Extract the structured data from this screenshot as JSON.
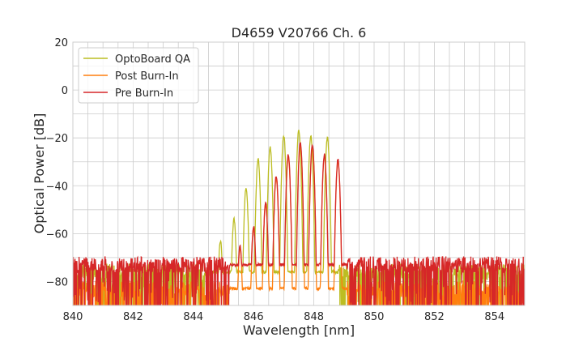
{
  "chart_data": {
    "type": "line",
    "title": "D4659 V20766 Ch. 6",
    "xlabel": "Wavelength [nm]",
    "ylabel": "Optical Power [dB]",
    "xlim": [
      840,
      855
    ],
    "ylim": [
      -90,
      20
    ],
    "xticks": [
      840,
      842,
      844,
      846,
      848,
      850,
      852,
      854
    ],
    "yticks": [
      20,
      0,
      -20,
      -40,
      -60,
      -80
    ],
    "xtick_labels": [
      "840",
      "842",
      "844",
      "846",
      "848",
      "850",
      "852",
      "854"
    ],
    "ytick_labels": [
      "20",
      "0",
      "−20",
      "−40",
      "−60",
      "−80"
    ],
    "grid": true,
    "legend_position": "top-left",
    "series": [
      {
        "name": "OptoBoard QA",
        "color": "#bcbd22",
        "noise_floor_dB": -76,
        "band_nm": [
          844.6,
          848.8
        ],
        "peaks": [
          {
            "x": 844.9,
            "y": -63
          },
          {
            "x": 845.35,
            "y": -54
          },
          {
            "x": 845.75,
            "y": -41
          },
          {
            "x": 846.15,
            "y": -29
          },
          {
            "x": 846.55,
            "y": -24
          },
          {
            "x": 847.0,
            "y": -19
          },
          {
            "x": 847.5,
            "y": -17
          },
          {
            "x": 847.9,
            "y": -19
          },
          {
            "x": 848.45,
            "y": -20
          }
        ]
      },
      {
        "name": "Post Burn-In",
        "color": "#ff7f0e",
        "noise_floor_dB": -83,
        "band_nm": [
          845.2,
          849.1
        ],
        "peaks": [
          {
            "x": 845.55,
            "y": -66
          },
          {
            "x": 846.0,
            "y": -58
          },
          {
            "x": 846.4,
            "y": -48
          },
          {
            "x": 846.75,
            "y": -37
          },
          {
            "x": 847.15,
            "y": -28
          },
          {
            "x": 847.55,
            "y": -23
          },
          {
            "x": 847.95,
            "y": -24
          },
          {
            "x": 848.35,
            "y": -28
          },
          {
            "x": 848.8,
            "y": -30
          }
        ]
      },
      {
        "name": "Pre Burn-In",
        "color": "#d62728",
        "noise_floor_dB": -73,
        "band_nm": [
          845.2,
          849.1
        ],
        "peaks": [
          {
            "x": 845.55,
            "y": -65
          },
          {
            "x": 846.0,
            "y": -57
          },
          {
            "x": 846.4,
            "y": -47
          },
          {
            "x": 846.75,
            "y": -36
          },
          {
            "x": 847.15,
            "y": -27
          },
          {
            "x": 847.55,
            "y": -22
          },
          {
            "x": 847.95,
            "y": -23
          },
          {
            "x": 848.35,
            "y": -27
          },
          {
            "x": 848.8,
            "y": -29
          }
        ]
      }
    ]
  }
}
